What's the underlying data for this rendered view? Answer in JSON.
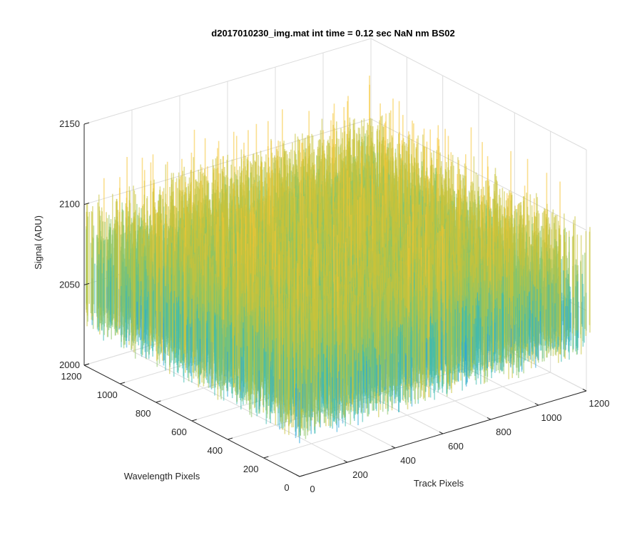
{
  "chart_data": {
    "type": "surface",
    "title": "d2017010230_img.mat int time = 0.12 sec  NaN nm BS02",
    "xlabel": "Track Pixels",
    "ylabel": "Wavelength Pixels",
    "zlabel": "Signal (ADU)",
    "xlim": [
      0,
      1200
    ],
    "ylim": [
      0,
      1200
    ],
    "zlim": [
      2000,
      2150
    ],
    "xticks": [
      "0",
      "200",
      "400",
      "600",
      "800",
      "1000",
      "1200"
    ],
    "yticks": [
      "0",
      "200",
      "400",
      "600",
      "800",
      "1000",
      "1200"
    ],
    "zticks": [
      "2000",
      "2050",
      "2100",
      "2150"
    ],
    "grid": true,
    "colormap": [
      "#0072bd",
      "#2ba6d8",
      "#3cbcb0",
      "#8cc564",
      "#c8c33a",
      "#f5c433"
    ],
    "surface_summary": {
      "baseline_signal": 2070,
      "peak_signal": 2130,
      "min_signal": 2020,
      "note_visible": "noisy surface over full 0-1200 by 0-1200 pixel grid"
    }
  }
}
